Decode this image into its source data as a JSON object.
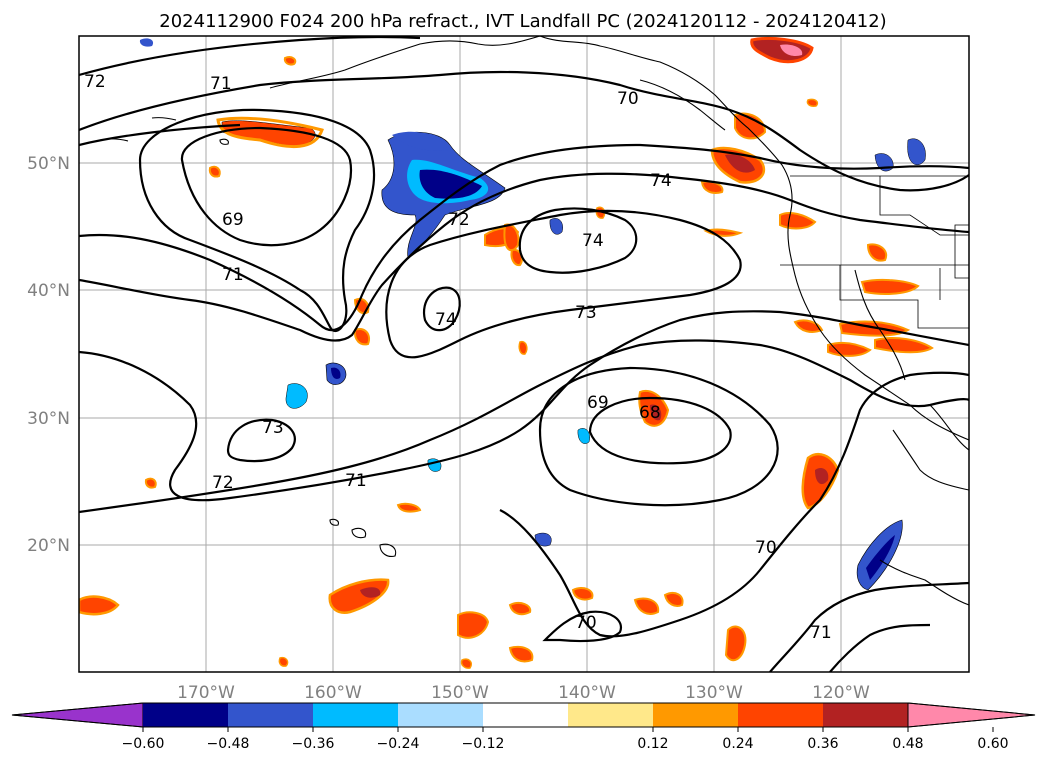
{
  "title": "2024112900 F024 200 hPa refract., IVT Landfall PC (2024120112 - 2024120412)",
  "map": {
    "lon_labels": [
      "170°W",
      "160°W",
      "150°W",
      "140°W",
      "130°W",
      "120°W"
    ],
    "lat_labels": [
      "50°N",
      "40°N",
      "30°N",
      "20°N"
    ],
    "contour_labels": [
      "72",
      "71",
      "70",
      "69",
      "71",
      "74",
      "72",
      "74",
      "74",
      "73",
      "69",
      "68",
      "73",
      "72",
      "71",
      "70",
      "70",
      "71"
    ]
  },
  "colorbar": {
    "ticks": [
      "−0.60",
      "−0.48",
      "−0.36",
      "−0.24",
      "−0.12",
      "0.12",
      "0.24",
      "0.36",
      "0.48",
      "0.60"
    ],
    "colors": [
      "#9933cc",
      "#000088",
      "#3355cc",
      "#00bbff",
      "#aaddff",
      "#ffffff",
      "#ffe88a",
      "#ff9900",
      "#ff4400",
      "#b22222",
      "#ff88aa"
    ]
  }
}
